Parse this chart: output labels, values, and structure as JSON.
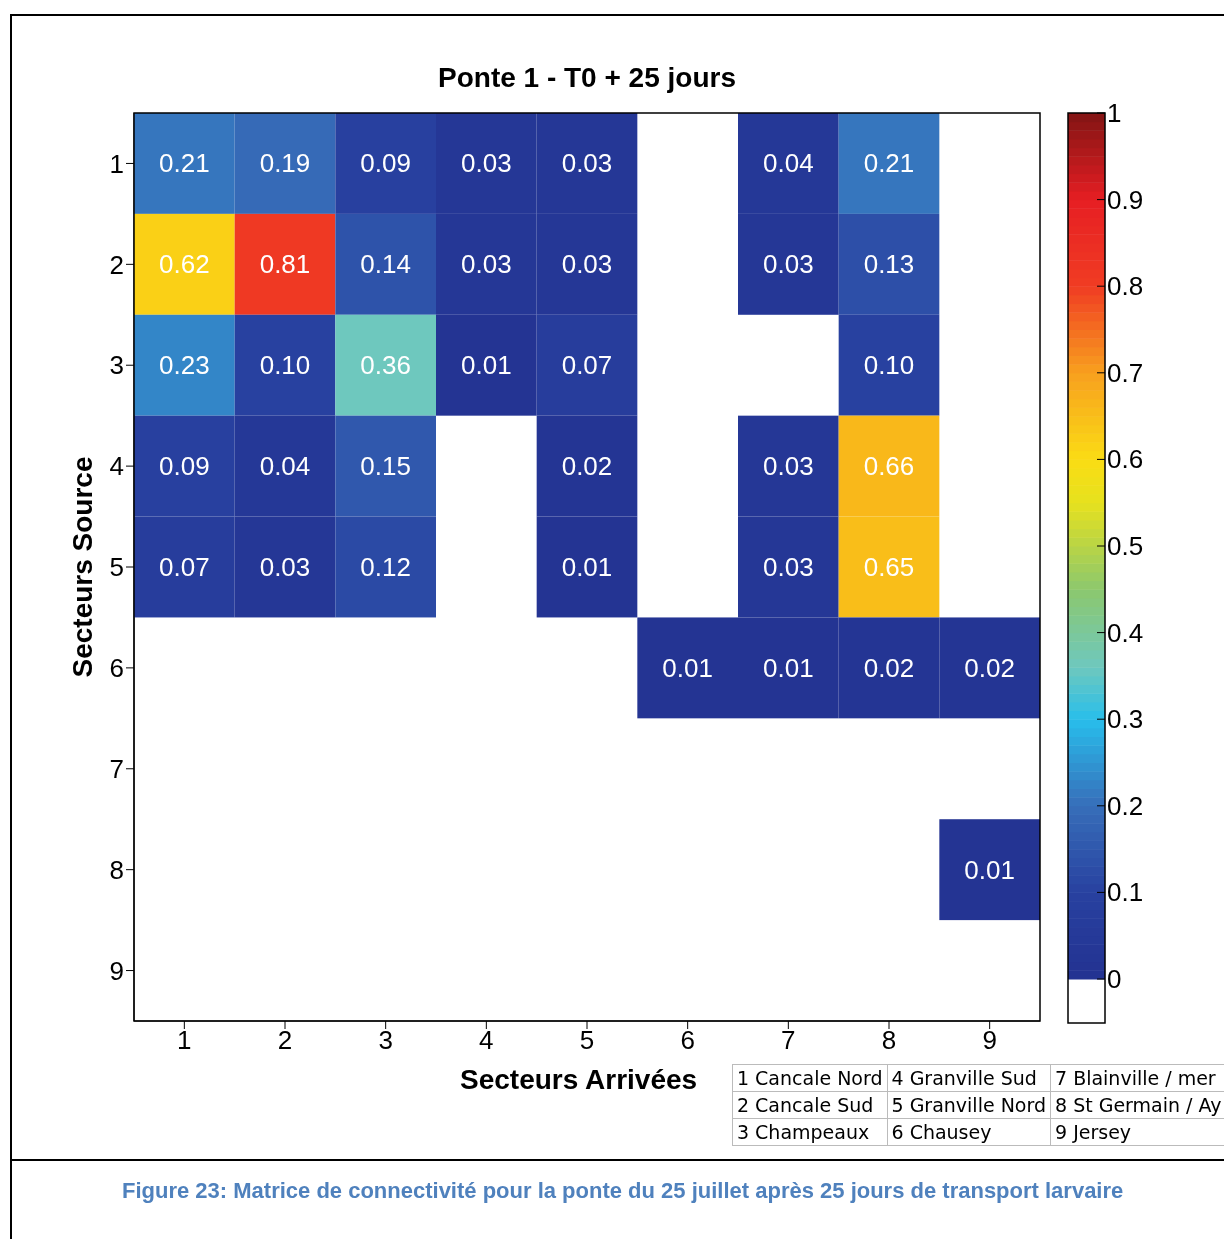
{
  "chart_data": {
    "type": "heatmap",
    "title": "Ponte 1 - T0 + 25 jours",
    "xlabel": "Secteurs Arrivées",
    "ylabel": "Secteurs Source",
    "categories": [
      "1",
      "2",
      "3",
      "4",
      "5",
      "6",
      "7",
      "8",
      "9"
    ],
    "y_categories": [
      "1",
      "2",
      "3",
      "4",
      "5",
      "6",
      "7",
      "8",
      "9"
    ],
    "cells": [
      [
        0.21,
        0.19,
        0.09,
        0.03,
        0.03,
        null,
        0.04,
        0.21,
        null
      ],
      [
        0.62,
        0.81,
        0.14,
        0.03,
        0.03,
        null,
        0.03,
        0.13,
        null
      ],
      [
        0.23,
        0.1,
        0.36,
        0.01,
        0.07,
        null,
        null,
        0.1,
        null
      ],
      [
        0.09,
        0.04,
        0.15,
        null,
        0.02,
        null,
        0.03,
        0.66,
        null
      ],
      [
        0.07,
        0.03,
        0.12,
        null,
        0.01,
        null,
        0.03,
        0.65,
        null
      ],
      [
        null,
        null,
        null,
        null,
        null,
        0.01,
        0.01,
        0.02,
        0.02
      ],
      [
        null,
        null,
        null,
        null,
        null,
        null,
        null,
        null,
        null
      ],
      [
        null,
        null,
        null,
        null,
        null,
        null,
        null,
        null,
        0.01
      ],
      [
        null,
        null,
        null,
        null,
        null,
        null,
        null,
        null,
        null
      ]
    ],
    "cell_labels": [
      [
        "0.21",
        "0.19",
        "0.09",
        "0.03",
        "0.03",
        null,
        "0.04",
        "0.21",
        null
      ],
      [
        "0.62",
        "0.81",
        "0.14",
        "0.03",
        "0.03",
        null,
        "0.03",
        "0.13",
        null
      ],
      [
        "0.23",
        "0.10",
        "0.36",
        "0.01",
        "0.07",
        null,
        null,
        "0.10",
        null
      ],
      [
        "0.09",
        "0.04",
        "0.15",
        null,
        "0.02",
        null,
        "0.03",
        "0.66",
        null
      ],
      [
        "0.07",
        "0.03",
        "0.12",
        null,
        "0.01",
        null,
        "0.03",
        "0.65",
        null
      ],
      [
        null,
        null,
        null,
        null,
        null,
        "0.01",
        "0.01",
        "0.02",
        "0.02"
      ],
      [
        null,
        null,
        null,
        null,
        null,
        null,
        null,
        null,
        null
      ],
      [
        null,
        null,
        null,
        null,
        null,
        null,
        null,
        null,
        "0.01"
      ],
      [
        null,
        null,
        null,
        null,
        null,
        null,
        null,
        null,
        null
      ]
    ],
    "clim": [
      0,
      1
    ],
    "cticks": [
      0,
      0.1,
      0.2,
      0.3,
      0.4,
      0.5,
      0.6,
      0.7,
      0.8,
      0.9,
      1
    ],
    "annotations": [
      "1",
      "Cancale Nord",
      "2",
      "Cancale Sud",
      "3",
      "Champeaux",
      "4",
      "Granville Sud",
      "5",
      "Granville Nord",
      "6",
      "Chausey",
      "7",
      "Blainville / mer",
      "8",
      "St Germain / Ay",
      "9",
      "Jersey",
      "Figure 23: Matrice de connectivité pour la ponte du 25 juillet après 25 jours de transport larvaire"
    ]
  }
}
